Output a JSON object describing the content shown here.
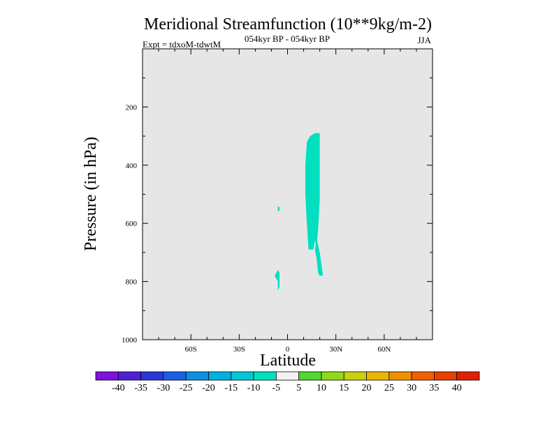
{
  "chart_data": {
    "type": "heatmap",
    "title": "Meridional Streamfunction (10**9kg/m-2)",
    "subtitle_center": "054kyr BP - 054kyr BP",
    "subtitle_left": "Expt = tdxoM-tdwtM",
    "subtitle_right": "JJA",
    "xlabel": "Latitude",
    "ylabel": "Pressure (in hPa)",
    "xlim": [
      -90,
      90
    ],
    "ylim": [
      0,
      1000
    ],
    "y_reversed": true,
    "x_ticks": [
      {
        "value": -60,
        "label": "60S"
      },
      {
        "value": -30,
        "label": "30S"
      },
      {
        "value": 0,
        "label": "0"
      },
      {
        "value": 30,
        "label": "30N"
      },
      {
        "value": 60,
        "label": "60N"
      }
    ],
    "y_ticks": [
      {
        "value": 200,
        "label": "200"
      },
      {
        "value": 400,
        "label": "400"
      },
      {
        "value": 600,
        "label": "600"
      },
      {
        "value": 800,
        "label": "800"
      },
      {
        "value": 1000,
        "label": "1000"
      }
    ],
    "background_color": "#e6e6e6",
    "regions": [
      {
        "name": "tropical-column",
        "bin": "-10 to -5",
        "color": "#00e0c0",
        "polygon": [
          [
            13,
            690
          ],
          [
            12,
            600
          ],
          [
            11,
            500
          ],
          [
            11,
            400
          ],
          [
            12,
            320
          ],
          [
            14,
            300
          ],
          [
            17,
            290
          ],
          [
            20,
            290
          ],
          [
            20,
            400
          ],
          [
            20,
            520
          ],
          [
            19,
            620
          ],
          [
            18,
            680
          ],
          [
            17,
            660
          ],
          [
            16,
            690
          ],
          [
            13,
            690
          ]
        ]
      },
      {
        "name": "tropical-tail",
        "bin": "-10 to -5",
        "color": "#00e0c0",
        "polygon": [
          [
            18,
            650
          ],
          [
            20,
            700
          ],
          [
            21,
            740
          ],
          [
            22,
            780
          ],
          [
            20,
            780
          ],
          [
            19,
            770
          ],
          [
            18,
            720
          ],
          [
            17,
            690
          ]
        ]
      },
      {
        "name": "southern-patch",
        "bin": "-10 to -5",
        "color": "#00e0c0",
        "polygon": [
          [
            -6,
            760
          ],
          [
            -5,
            770
          ],
          [
            -5,
            820
          ],
          [
            -6,
            830
          ],
          [
            -6,
            800
          ],
          [
            -8,
            780
          ],
          [
            -7,
            770
          ]
        ]
      },
      {
        "name": "southern-dot",
        "bin": "-10 to -5",
        "color": "#00e0c0",
        "polygon": [
          [
            -6,
            540
          ],
          [
            -5,
            545
          ],
          [
            -5,
            555
          ],
          [
            -6,
            560
          ]
        ]
      }
    ],
    "colorbar": {
      "labels": [
        "-40",
        "-35",
        "-30",
        "-25",
        "-20",
        "-15",
        "-10",
        "-5",
        "5",
        "10",
        "15",
        "20",
        "25",
        "30",
        "35",
        "40"
      ],
      "colors": [
        "#8010e0",
        "#5020d8",
        "#2838d8",
        "#1a60e0",
        "#0c90e0",
        "#00b0e0",
        "#00c8d8",
        "#00e0c0",
        "#f2f2f2",
        "#50d830",
        "#90d818",
        "#c8d010",
        "#e8b800",
        "#f09000",
        "#f06000",
        "#e84000",
        "#e02000"
      ]
    }
  }
}
